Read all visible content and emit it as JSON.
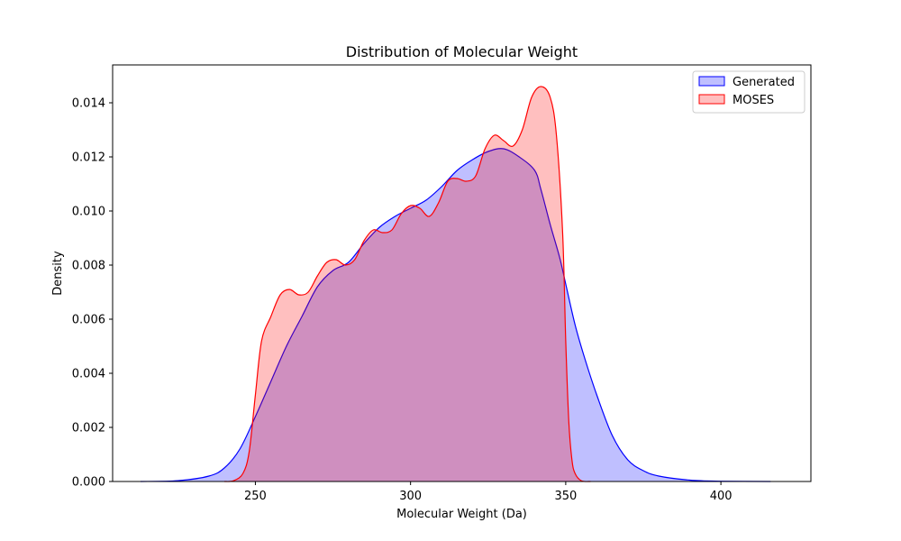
{
  "chart_data": {
    "type": "area",
    "title": "Distribution of Molecular Weight",
    "xlabel": "Molecular Weight (Da)",
    "ylabel": "Density",
    "xlim": [
      204,
      429
    ],
    "ylim": [
      0,
      0.0154
    ],
    "xticks": [
      250,
      300,
      350,
      400
    ],
    "yticks": [
      0.0,
      0.002,
      0.004,
      0.006,
      0.008,
      0.01,
      0.012,
      0.014
    ],
    "ytick_labels": [
      "0.000",
      "0.002",
      "0.004",
      "0.006",
      "0.008",
      "0.010",
      "0.012",
      "0.014"
    ],
    "grid": false,
    "legend_position": "top-right",
    "series": [
      {
        "name": "Generated",
        "color": "#0000ff",
        "fill": "#0000ff",
        "fill_opacity": 0.25,
        "x": [
          213,
          225,
          235,
          240,
          245,
          250,
          255,
          260,
          265,
          270,
          275,
          280,
          285,
          290,
          295,
          300,
          305,
          310,
          315,
          320,
          325,
          330,
          335,
          340,
          342,
          345,
          348,
          350,
          353,
          356,
          360,
          365,
          370,
          375,
          380,
          390,
          400,
          416
        ],
        "y": [
          0.0,
          3e-05,
          0.0002,
          0.0005,
          0.0012,
          0.0024,
          0.0037,
          0.005,
          0.0061,
          0.0072,
          0.0078,
          0.0081,
          0.0088,
          0.0094,
          0.0098,
          0.0101,
          0.0104,
          0.0109,
          0.0115,
          0.0119,
          0.0122,
          0.0123,
          0.012,
          0.0115,
          0.0108,
          0.0095,
          0.0083,
          0.0073,
          0.0058,
          0.0046,
          0.0032,
          0.0017,
          0.0008,
          0.0004,
          0.0002,
          5e-05,
          1e-05,
          0.0
        ]
      },
      {
        "name": "MOSES",
        "color": "#ff0000",
        "fill": "#ff0000",
        "fill_opacity": 0.25,
        "x": [
          240,
          243,
          246,
          248,
          250,
          252,
          255,
          258,
          261,
          264,
          267,
          270,
          273,
          276,
          279,
          282,
          285,
          288,
          291,
          294,
          297,
          300,
          303,
          306,
          309,
          312,
          315,
          318,
          321,
          324,
          327,
          330,
          333,
          336,
          339,
          342,
          345,
          347,
          349,
          350,
          351,
          352,
          353,
          355,
          358
        ],
        "y": [
          0.0,
          3e-05,
          0.0003,
          0.0011,
          0.0032,
          0.0052,
          0.0061,
          0.0069,
          0.0071,
          0.0069,
          0.007,
          0.0076,
          0.0081,
          0.0082,
          0.008,
          0.0082,
          0.0089,
          0.0093,
          0.0092,
          0.0093,
          0.0099,
          0.0102,
          0.0101,
          0.0098,
          0.0103,
          0.0111,
          0.0112,
          0.0111,
          0.0113,
          0.0123,
          0.0128,
          0.0126,
          0.0124,
          0.013,
          0.0142,
          0.0146,
          0.0142,
          0.0128,
          0.0092,
          0.0052,
          0.0022,
          0.0008,
          0.0003,
          3e-05,
          0.0
        ]
      }
    ]
  }
}
